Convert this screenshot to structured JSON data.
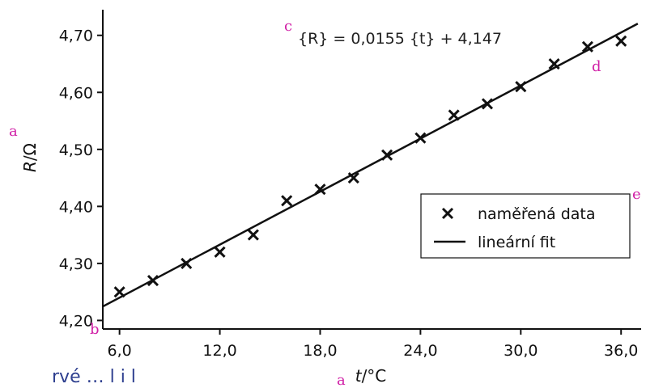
{
  "chart_data": {
    "type": "scatter",
    "title": "",
    "xlabel": "t/°C",
    "ylabel": "R/Ω",
    "xlim": [
      5.0,
      37.2
    ],
    "ylim": [
      4.185,
      4.745
    ],
    "x_ticks": [
      6.0,
      12.0,
      18.0,
      24.0,
      30.0,
      36.0
    ],
    "x_tick_labels": [
      "6,0",
      "12,0",
      "18,0",
      "24,0",
      "30,0",
      "36,0"
    ],
    "y_ticks": [
      4.2,
      4.3,
      4.4,
      4.5,
      4.6,
      4.7
    ],
    "y_tick_labels": [
      "4,20",
      "4,30",
      "4,40",
      "4,50",
      "4,60",
      "4,70"
    ],
    "grid": false,
    "legend_placement": "lower-right",
    "series": [
      {
        "name": "naměřená data",
        "kind": "scatter",
        "marker": "x",
        "x": [
          6,
          8,
          10,
          12,
          14,
          16,
          18,
          20,
          22,
          24,
          26,
          28,
          30,
          32,
          34,
          36
        ],
        "y": [
          4.25,
          4.27,
          4.3,
          4.32,
          4.35,
          4.41,
          4.43,
          4.45,
          4.49,
          4.52,
          4.56,
          4.58,
          4.61,
          4.65,
          4.68,
          4.69
        ]
      },
      {
        "name": "lineární fit",
        "kind": "line",
        "slope": 0.0155,
        "intercept": 4.147
      }
    ],
    "annotation": "{R} = 0,0155 {t} + 4,147",
    "color": "#111111"
  },
  "markers": {
    "a_y": "a",
    "a_x": "a",
    "b": "b",
    "c": "c",
    "d": "d",
    "e": "e",
    "color": "#d01fa6"
  },
  "footer_fragment": "rvé … l   i   l"
}
